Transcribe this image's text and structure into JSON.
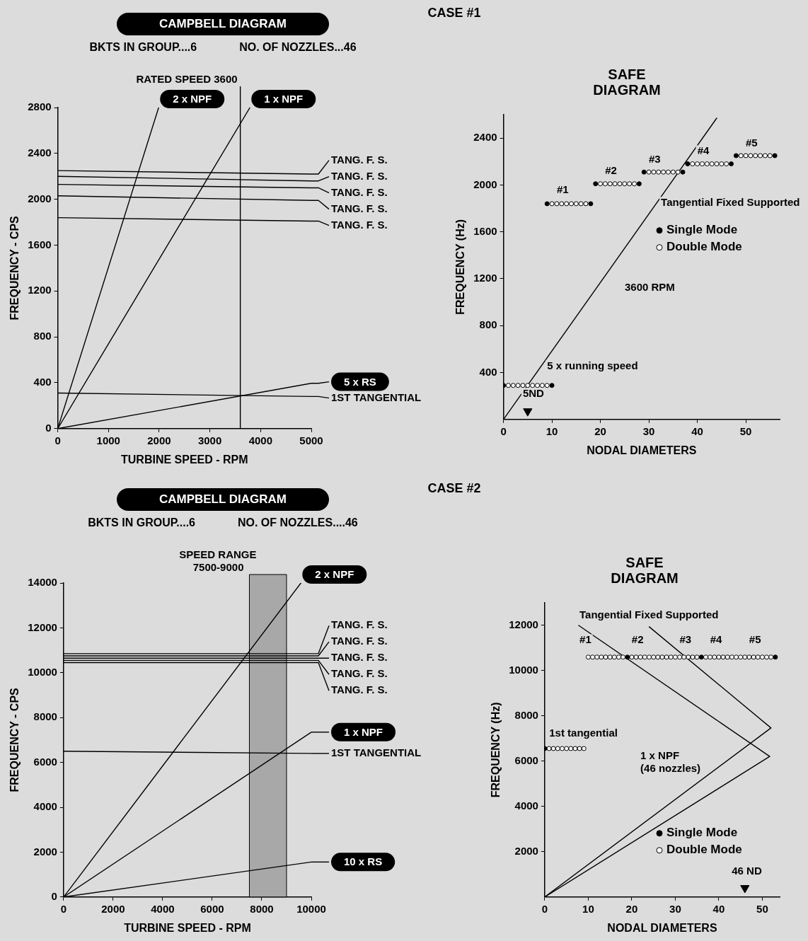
{
  "chart_data": [
    {
      "type": "line",
      "title": "CAMPBELL DIAGRAM",
      "xlabel": "TURBINE SPEED - RPM",
      "ylabel": "FREQUENCY - CPS",
      "annotations": [
        "CASE #1",
        "BKTS IN GROUP....6",
        "NO. OF NOZZLES...46"
      ],
      "xlim": [
        0,
        5000
      ],
      "ylim": [
        0,
        2800
      ],
      "xticks": [
        0,
        1000,
        2000,
        3000,
        4000,
        5000
      ],
      "yticks": [
        0,
        400,
        800,
        1200,
        1600,
        2000,
        2400,
        2800
      ],
      "legend": "right",
      "ref_lines": [
        {
          "axis": "x",
          "value": 3600,
          "label": "RATED SPEED 3600"
        }
      ],
      "series": [
        {
          "name": "2 x NPF",
          "color": "#000000",
          "x": [
            0,
            1990
          ],
          "values": [
            0,
            2800
          ]
        },
        {
          "name": "1 x NPF",
          "color": "#000000",
          "x": [
            0,
            3790
          ],
          "values": [
            0,
            2800
          ]
        },
        {
          "name": "TANG. F. S.",
          "color": "#000000",
          "x": [
            0,
            5000
          ],
          "values": [
            2250,
            2220
          ]
        },
        {
          "name": "TANG. F. S.",
          "color": "#000000",
          "x": [
            0,
            5000
          ],
          "values": [
            2200,
            2160
          ]
        },
        {
          "name": "TANG. F. S.",
          "color": "#000000",
          "x": [
            0,
            5000
          ],
          "values": [
            2130,
            2100
          ]
        },
        {
          "name": "TANG. F. S.",
          "color": "#000000",
          "x": [
            0,
            5000
          ],
          "values": [
            2030,
            1990
          ]
        },
        {
          "name": "TANG. F. S.",
          "color": "#000000",
          "x": [
            0,
            5000
          ],
          "values": [
            1840,
            1810
          ]
        },
        {
          "name": "5 x RS",
          "color": "#000000",
          "x": [
            0,
            5000
          ],
          "values": [
            0,
            395
          ]
        },
        {
          "name": "1ST TANGENTIAL",
          "color": "#000000",
          "x": [
            0,
            5000
          ],
          "values": [
            310,
            280
          ]
        }
      ]
    },
    {
      "type": "scatter",
      "title": "SAFE DIAGRAM",
      "xlabel": "NODAL DIAMETERS",
      "ylabel": "FREQUENCY (Hz)",
      "xlim": [
        0,
        57
      ],
      "ylim": [
        0,
        2600
      ],
      "xticks": [
        0,
        10,
        20,
        30,
        40,
        50
      ],
      "yticks": [
        400,
        800,
        1200,
        1600,
        2000,
        2400
      ],
      "marker": "circle",
      "legend": "right",
      "annotations": [
        "#1",
        "#2",
        "#3",
        "#4",
        "#5",
        "Tangential Fixed Supported",
        "3600 RPM",
        "5 x running speed",
        "5ND"
      ],
      "series": [
        {
          "name": "Single Mode",
          "color": "#000000",
          "x": [
            0,
            10,
            9,
            18,
            19,
            28,
            29,
            37,
            38,
            47,
            48,
            56
          ],
          "values": [
            290,
            290,
            1840,
            1840,
            2010,
            2010,
            2110,
            2110,
            2180,
            2180,
            2250,
            2250
          ]
        },
        {
          "name": "Double Mode",
          "color": "#ffffff",
          "x": [
            1,
            2,
            3,
            4,
            5,
            6,
            7,
            8,
            9,
            10,
            11,
            12,
            13,
            14,
            15,
            16,
            17,
            20,
            21,
            22,
            23,
            24,
            25,
            26,
            27,
            30,
            31,
            32,
            33,
            34,
            35,
            36,
            39,
            40,
            41,
            42,
            43,
            44,
            45,
            46,
            49,
            50,
            51,
            52,
            53,
            54,
            55
          ],
          "values": [
            290,
            290,
            290,
            290,
            290,
            290,
            290,
            290,
            290,
            1840,
            1840,
            1840,
            1840,
            1840,
            1840,
            1840,
            1840,
            2010,
            2010,
            2010,
            2010,
            2010,
            2010,
            2010,
            2010,
            2110,
            2110,
            2110,
            2110,
            2110,
            2110,
            2110,
            2180,
            2180,
            2180,
            2180,
            2180,
            2180,
            2180,
            2180,
            2250,
            2250,
            2250,
            2250,
            2250,
            2250,
            2250
          ]
        },
        {
          "type": "line",
          "marker": "none",
          "color": "#000000",
          "x": [
            0,
            44
          ],
          "values": [
            0,
            2570
          ]
        },
        {
          "type": "scatter",
          "marker": "triangle",
          "color": "#000000",
          "x": [
            5
          ],
          "values": [
            70
          ]
        }
      ]
    },
    {
      "type": "line",
      "title": "CAMPBELL DIAGRAM",
      "xlabel": "TURBINE SPEED - RPM",
      "ylabel": "FREQUENCY - CPS",
      "annotations": [
        "CASE #2",
        "BKTS IN GROUP....6",
        "NO. OF NOZZLES....46"
      ],
      "xlim": [
        0,
        10000
      ],
      "ylim": [
        0,
        14000
      ],
      "xticks": [
        0,
        2000,
        4000,
        6000,
        8000,
        10000
      ],
      "yticks": [
        0,
        2000,
        4000,
        6000,
        8000,
        10000,
        12000,
        14000
      ],
      "legend": "right",
      "bands": [
        {
          "axis": "x",
          "from": 7500,
          "to": 9000,
          "label": "SPEED RANGE\n7500-9000",
          "color": "#a8a8a8"
        }
      ],
      "series": [
        {
          "name": "2 x NPF",
          "color": "#000000",
          "x": [
            0,
            9580
          ],
          "values": [
            0,
            14000
          ]
        },
        {
          "name": "TANG. F. S.",
          "color": "#000000",
          "x": [
            0,
            10000
          ],
          "values": [
            10850,
            10850
          ]
        },
        {
          "name": "TANG. F. S.",
          "color": "#000000",
          "x": [
            0,
            10000
          ],
          "values": [
            10750,
            10750
          ]
        },
        {
          "name": "TANG. F. S.",
          "color": "#000000",
          "x": [
            0,
            10000
          ],
          "values": [
            10650,
            10650
          ]
        },
        {
          "name": "TANG. F. S.",
          "color": "#000000",
          "x": [
            0,
            10000
          ],
          "values": [
            10550,
            10550
          ]
        },
        {
          "name": "TANG. F. S.",
          "color": "#000000",
          "x": [
            0,
            10000
          ],
          "values": [
            10450,
            10450
          ]
        },
        {
          "name": "1 x NPF",
          "color": "#000000",
          "x": [
            0,
            10000
          ],
          "values": [
            0,
            7350
          ]
        },
        {
          "name": "1ST TANGENTIAL",
          "color": "#000000",
          "x": [
            0,
            10000
          ],
          "values": [
            6500,
            6400
          ]
        },
        {
          "name": "10 x RS",
          "color": "#000000",
          "x": [
            0,
            10000
          ],
          "values": [
            0,
            1560
          ]
        }
      ]
    },
    {
      "type": "scatter",
      "title": "SAFE DIAGRAM",
      "xlabel": "NODAL DIAMETERS",
      "ylabel": "FREQUENCY (Hz)",
      "xlim": [
        0,
        54
      ],
      "ylim": [
        0,
        13000
      ],
      "xticks": [
        0,
        10,
        20,
        30,
        40,
        50
      ],
      "yticks": [
        2000,
        4000,
        6000,
        8000,
        10000,
        12000
      ],
      "marker": "circle",
      "legend": "bottom right",
      "annotations": [
        "Tangential Fixed Supported",
        "#1",
        "#2",
        "#3",
        "#4",
        "#5",
        "1st tangential",
        "1 x NPF\n(46 nozzles)",
        "46 ND"
      ],
      "series": [
        {
          "name": "Single Mode",
          "color": "#000000",
          "x": [
            0,
            19,
            36,
            53
          ],
          "values": [
            6560,
            10600,
            10600,
            10600
          ]
        },
        {
          "name": "Double Mode",
          "color": "#ffffff",
          "x": [
            1,
            2,
            3,
            4,
            5,
            6,
            7,
            8,
            9,
            10,
            11,
            12,
            13,
            14,
            15,
            16,
            17,
            18,
            20,
            21,
            22,
            23,
            24,
            25,
            26,
            27,
            28,
            29,
            30,
            31,
            32,
            33,
            34,
            35,
            37,
            38,
            39,
            40,
            41,
            42,
            43,
            44,
            45,
            46,
            47,
            48,
            49,
            50,
            51,
            52
          ],
          "values": [
            6560,
            6560,
            6560,
            6560,
            6560,
            6560,
            6560,
            6560,
            6560,
            10600,
            10600,
            10600,
            10600,
            10600,
            10600,
            10600,
            10600,
            10600,
            10600,
            10600,
            10600,
            10600,
            10600,
            10600,
            10600,
            10600,
            10600,
            10600,
            10600,
            10600,
            10600,
            10600,
            10600,
            10600,
            10600,
            10600,
            10600,
            10600,
            10600,
            10600,
            10600,
            10600,
            10600,
            10600,
            10600,
            10600,
            10600,
            10600,
            10600,
            10600
          ]
        },
        {
          "type": "line",
          "marker": "none",
          "color": "#000000",
          "x": [
            0,
            52,
            24
          ],
          "values": [
            0,
            7470,
            11940
          ]
        },
        {
          "type": "line",
          "marker": "none",
          "color": "#000000",
          "x": [
            0,
            51.7,
            7.8
          ],
          "values": [
            0,
            6210,
            12000
          ]
        },
        {
          "type": "scatter",
          "marker": "triangle",
          "color": "#000000",
          "x": [
            46
          ],
          "values": [
            400
          ]
        }
      ]
    }
  ]
}
